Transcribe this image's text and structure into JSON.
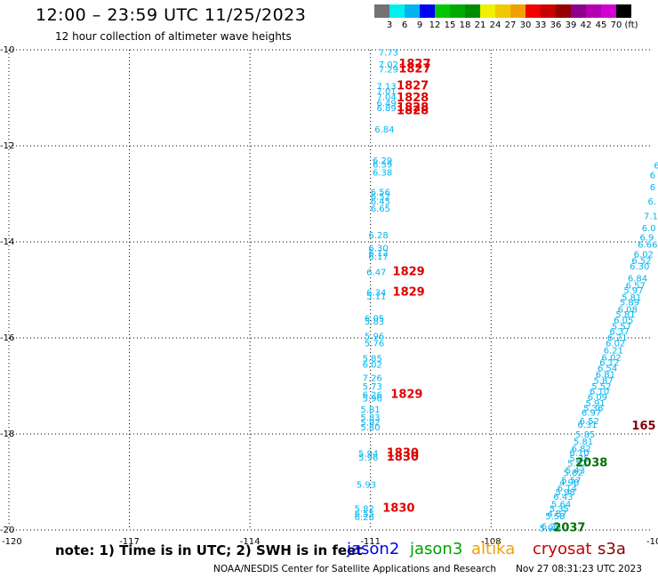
{
  "title": "12:00 – 23:59 UTC 11/25/2023",
  "subtitle": "12 hour collection of altimeter wave heights",
  "colorbar": {
    "unit_label": "(ft)",
    "colors": [
      "#737373",
      "#00f0f0",
      "#00b4f0",
      "#0000f0",
      "#00c800",
      "#00aa00",
      "#008c00",
      "#f0f000",
      "#f0c800",
      "#f0a000",
      "#f00000",
      "#c80000",
      "#960000",
      "#8c008c",
      "#b400b4",
      "#d200d2",
      "#000000"
    ],
    "ticks": [
      "3",
      "6",
      "9",
      "12",
      "15",
      "18",
      "21",
      "24",
      "27",
      "30",
      "33",
      "36",
      "39",
      "42",
      "45",
      "70"
    ]
  },
  "note": "note:  1) Time is in UTC;  2) SWH is in feet",
  "satellites": [
    {
      "name": "jason2",
      "color": "#0000f0"
    },
    {
      "name": "jason3",
      "color": "#00a000"
    },
    {
      "name": "altika",
      "color": "#f0a000"
    },
    {
      "name": "cryosat",
      "color": "#c80000"
    },
    {
      "name": "s3a",
      "color": "#8b0000"
    }
  ],
  "credit": "NOAA/NESDIS Center for Satellite Applications and Research",
  "generated": "Nov 27 08:31:23 UTC 2023",
  "chart_data": {
    "type": "scatter",
    "xlim": [
      -120,
      -104
    ],
    "ylim": [
      -20,
      -10
    ],
    "x_ticks": [
      -117,
      -114,
      -111,
      -108
    ],
    "y_ticks": [
      -12,
      -14,
      -16,
      -18
    ],
    "corner_labels": {
      "top_left": "-10",
      "bottom_left": "-20",
      "bottom_left_x": "-120",
      "bottom_right_x": "-10"
    },
    "grid": true,
    "series": [
      {
        "name": "jason3",
        "color": "#00b4f0",
        "points": [
          {
            "x": -110.8,
            "y": -10.05,
            "v": "7.73"
          },
          {
            "x": -110.8,
            "y": -10.3,
            "v": "7.02"
          },
          {
            "x": -110.8,
            "y": -10.4,
            "v": "7.29"
          },
          {
            "x": -110.85,
            "y": -10.75,
            "v": "7.13"
          },
          {
            "x": -110.85,
            "y": -10.85,
            "v": "7.01"
          },
          {
            "x": -110.85,
            "y": -10.97,
            "v": "7.04"
          },
          {
            "x": -110.85,
            "y": -11.1,
            "v": "6.49"
          },
          {
            "x": -110.85,
            "y": -11.2,
            "v": "6.89"
          },
          {
            "x": -110.9,
            "y": -11.65,
            "v": "6.84"
          },
          {
            "x": -110.95,
            "y": -12.3,
            "v": "6.29"
          },
          {
            "x": -110.95,
            "y": -12.38,
            "v": "6.59"
          },
          {
            "x": -110.95,
            "y": -12.55,
            "v": "6.38"
          },
          {
            "x": -111.0,
            "y": -12.95,
            "v": "6.56"
          },
          {
            "x": -111.0,
            "y": -13.05,
            "v": "6.52"
          },
          {
            "x": -111.0,
            "y": -13.15,
            "v": "6.45"
          },
          {
            "x": -111.0,
            "y": -13.3,
            "v": "6.65"
          },
          {
            "x": -111.05,
            "y": -13.85,
            "v": "6.28"
          },
          {
            "x": -111.05,
            "y": -14.12,
            "v": "6.30"
          },
          {
            "x": -111.05,
            "y": -14.22,
            "v": "6.12"
          },
          {
            "x": -111.05,
            "y": -14.3,
            "v": "6.17"
          },
          {
            "x": -111.1,
            "y": -14.62,
            "v": "6.47"
          },
          {
            "x": -111.1,
            "y": -15.05,
            "v": "6.34"
          },
          {
            "x": -111.1,
            "y": -15.12,
            "v": "5.11"
          },
          {
            "x": -111.15,
            "y": -15.58,
            "v": "6.05"
          },
          {
            "x": -111.15,
            "y": -15.65,
            "v": "5.83"
          },
          {
            "x": -111.15,
            "y": -15.95,
            "v": "5.96"
          },
          {
            "x": -111.15,
            "y": -16.1,
            "v": "5.76"
          },
          {
            "x": -111.2,
            "y": -16.42,
            "v": "5.85"
          },
          {
            "x": -111.2,
            "y": -16.55,
            "v": "6.02"
          },
          {
            "x": -111.2,
            "y": -16.82,
            "v": "7.26"
          },
          {
            "x": -111.2,
            "y": -17.0,
            "v": "5.73"
          },
          {
            "x": -111.2,
            "y": -17.18,
            "v": "6.26"
          },
          {
            "x": -111.2,
            "y": -17.25,
            "v": "5.96"
          },
          {
            "x": -111.25,
            "y": -17.48,
            "v": "5.81"
          },
          {
            "x": -111.25,
            "y": -17.65,
            "v": "5.83"
          },
          {
            "x": -111.25,
            "y": -17.75,
            "v": "5.92"
          },
          {
            "x": -111.25,
            "y": -17.85,
            "v": "5.80"
          },
          {
            "x": -111.3,
            "y": -18.4,
            "v": "5.94"
          },
          {
            "x": -111.3,
            "y": -18.48,
            "v": "5.96"
          },
          {
            "x": -111.35,
            "y": -19.05,
            "v": "5.93"
          },
          {
            "x": -111.4,
            "y": -19.55,
            "v": "5.82"
          },
          {
            "x": -111.4,
            "y": -19.65,
            "v": "6.55"
          },
          {
            "x": -111.4,
            "y": -19.72,
            "v": "6.26"
          },
          {
            "x": -103.95,
            "y": -12.4,
            "v": "6"
          },
          {
            "x": -104.05,
            "y": -12.6,
            "v": "6"
          },
          {
            "x": -104.05,
            "y": -12.85,
            "v": "6"
          },
          {
            "x": -104.1,
            "y": -13.15,
            "v": "6."
          },
          {
            "x": -104.2,
            "y": -13.45,
            "v": "7.1"
          },
          {
            "x": -104.25,
            "y": -13.7,
            "v": "6.0"
          },
          {
            "x": -104.3,
            "y": -13.9,
            "v": "6.9"
          },
          {
            "x": -104.35,
            "y": -14.05,
            "v": "6.66"
          },
          {
            "x": -104.45,
            "y": -14.25,
            "v": "6.02"
          },
          {
            "x": -104.5,
            "y": -14.38,
            "v": "6.52"
          },
          {
            "x": -104.55,
            "y": -14.5,
            "v": "6.30"
          },
          {
            "x": -104.6,
            "y": -14.75,
            "v": "6.84"
          },
          {
            "x": -104.65,
            "y": -14.9,
            "v": "6.57"
          },
          {
            "x": -104.7,
            "y": -15.0,
            "v": "5.97"
          },
          {
            "x": -104.75,
            "y": -15.15,
            "v": "5.81"
          },
          {
            "x": -104.8,
            "y": -15.25,
            "v": "5.89"
          },
          {
            "x": -104.85,
            "y": -15.4,
            "v": "6.08"
          },
          {
            "x": -104.9,
            "y": -15.5,
            "v": "5.81"
          },
          {
            "x": -104.95,
            "y": -15.62,
            "v": "6.05"
          },
          {
            "x": -105.0,
            "y": -15.75,
            "v": "5.57"
          },
          {
            "x": -105.05,
            "y": -15.85,
            "v": "6.37"
          },
          {
            "x": -105.1,
            "y": -15.98,
            "v": "6.21"
          },
          {
            "x": -105.15,
            "y": -16.1,
            "v": "6.02"
          },
          {
            "x": -105.2,
            "y": -16.25,
            "v": "6.21"
          },
          {
            "x": -105.25,
            "y": -16.4,
            "v": "6.02"
          },
          {
            "x": -105.3,
            "y": -16.5,
            "v": "6.12"
          },
          {
            "x": -105.35,
            "y": -16.62,
            "v": "6.54"
          },
          {
            "x": -105.4,
            "y": -16.75,
            "v": "6.81"
          },
          {
            "x": -105.45,
            "y": -16.88,
            "v": "5.87"
          },
          {
            "x": -105.5,
            "y": -17.0,
            "v": "5.52"
          },
          {
            "x": -105.55,
            "y": -17.1,
            "v": "6.10"
          },
          {
            "x": -105.6,
            "y": -17.22,
            "v": "6.09"
          },
          {
            "x": -105.65,
            "y": -17.35,
            "v": "5.91"
          },
          {
            "x": -105.7,
            "y": -17.45,
            "v": "5.36"
          },
          {
            "x": -105.75,
            "y": -17.55,
            "v": "6.97"
          },
          {
            "x": -105.8,
            "y": -17.72,
            "v": "6.52"
          },
          {
            "x": -105.85,
            "y": -17.8,
            "v": "6.31"
          },
          {
            "x": -105.9,
            "y": -18.0,
            "v": "5.85"
          },
          {
            "x": -105.95,
            "y": -18.15,
            "v": "5.81"
          },
          {
            "x": -106.0,
            "y": -18.3,
            "v": "6.82"
          },
          {
            "x": -106.05,
            "y": -18.38,
            "v": "6.10"
          },
          {
            "x": -106.05,
            "y": -18.5,
            "v": "5.35"
          },
          {
            "x": -106.1,
            "y": -18.6,
            "v": "5.52"
          },
          {
            "x": -106.15,
            "y": -18.75,
            "v": "5.43"
          },
          {
            "x": -106.2,
            "y": -18.8,
            "v": "5.82"
          },
          {
            "x": -106.25,
            "y": -18.95,
            "v": "5.57"
          },
          {
            "x": -106.3,
            "y": -19.0,
            "v": "4.98"
          },
          {
            "x": -106.35,
            "y": -19.12,
            "v": "6.14"
          },
          {
            "x": -106.4,
            "y": -19.2,
            "v": "5.98"
          },
          {
            "x": -106.45,
            "y": -19.3,
            "v": "6.43"
          },
          {
            "x": -106.5,
            "y": -19.45,
            "v": "5.64"
          },
          {
            "x": -106.55,
            "y": -19.55,
            "v": "5.35"
          },
          {
            "x": -106.6,
            "y": -19.65,
            "v": "4.87"
          },
          {
            "x": -106.65,
            "y": -19.7,
            "v": "5.58"
          },
          {
            "x": -106.75,
            "y": -19.92,
            "v": "6.28"
          },
          {
            "x": -106.8,
            "y": -19.95,
            "v": "5.90"
          }
        ]
      },
      {
        "name": "cryosat",
        "color": "#e00000",
        "bold": true,
        "points": [
          {
            "x": -110.3,
            "y": -10.3,
            "v": "1827"
          },
          {
            "x": -110.3,
            "y": -10.4,
            "v": "1827"
          },
          {
            "x": -110.35,
            "y": -10.75,
            "v": "1827"
          },
          {
            "x": -110.35,
            "y": -11.0,
            "v": "1828"
          },
          {
            "x": -110.35,
            "y": -11.2,
            "v": "1828"
          },
          {
            "x": -110.35,
            "y": -11.27,
            "v": "1828"
          },
          {
            "x": -110.45,
            "y": -14.62,
            "v": "1829"
          },
          {
            "x": -110.45,
            "y": -15.05,
            "v": "1829"
          },
          {
            "x": -110.5,
            "y": -17.18,
            "v": "1829"
          },
          {
            "x": -110.6,
            "y": -18.4,
            "v": "1830"
          },
          {
            "x": -110.6,
            "y": -18.48,
            "v": "1830"
          },
          {
            "x": -110.7,
            "y": -19.55,
            "v": "1830"
          }
        ]
      },
      {
        "name": "s3a",
        "color": "#800000",
        "bold": true,
        "points": [
          {
            "x": -104.5,
            "y": -17.83,
            "v": "165"
          }
        ]
      },
      {
        "name": "jason3",
        "color": "#007000",
        "bold": true,
        "points": [
          {
            "x": -105.9,
            "y": -18.6,
            "v": "2038"
          },
          {
            "x": -106.45,
            "y": -19.95,
            "v": "2037"
          }
        ]
      }
    ]
  }
}
